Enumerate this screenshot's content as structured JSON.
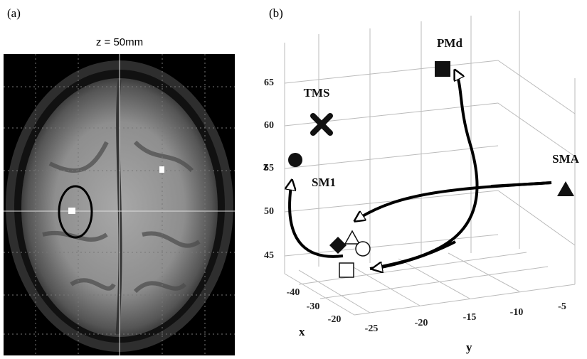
{
  "panel_a": {
    "label": "(a)",
    "title": "z = 50mm"
  },
  "panel_b": {
    "label": "(b)",
    "z_axis": {
      "label": "z",
      "ticks": [
        65,
        60,
        55,
        50,
        45
      ]
    },
    "y_axis": {
      "label": "y",
      "ticks": [
        -25,
        -20,
        -15,
        -10,
        -5
      ]
    },
    "x_axis": {
      "label": "x",
      "ticks": [
        -40,
        -30,
        -20
      ]
    },
    "points": [
      "PMd",
      "TMS",
      "SMA",
      "SM1"
    ]
  }
}
